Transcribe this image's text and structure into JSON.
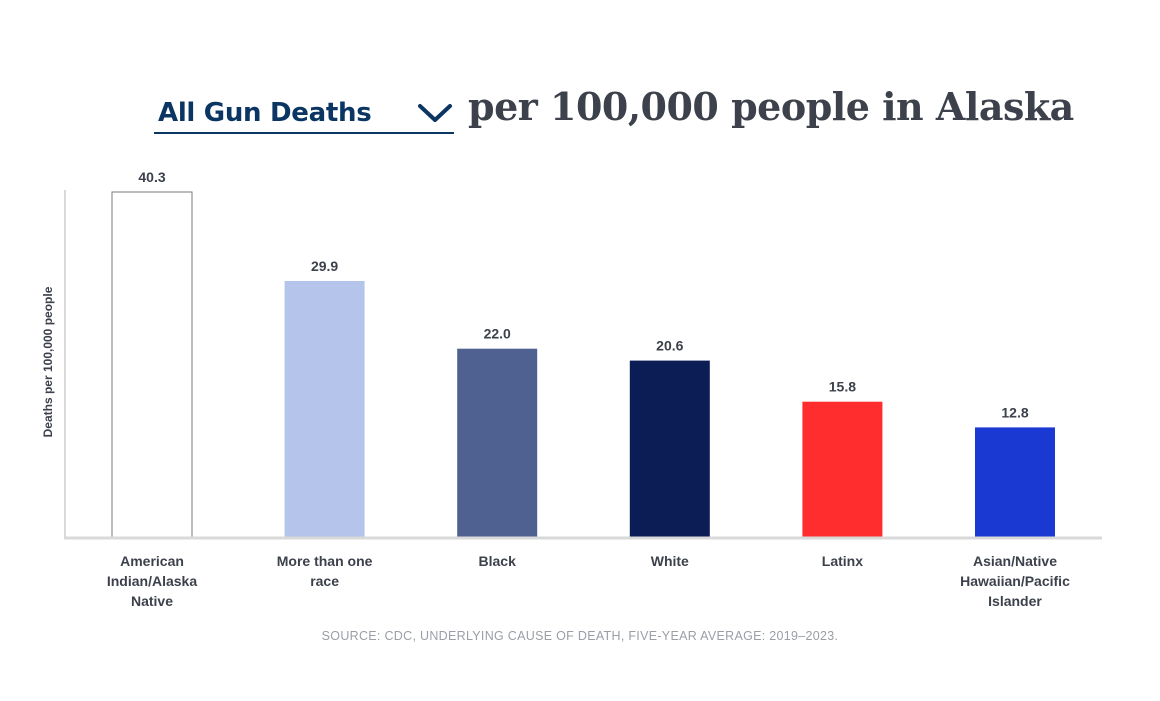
{
  "header": {
    "selector_label": "All Gun Deaths",
    "selector_icon": "chevron-down-icon",
    "title_rest": "per 100,000 people in Alaska"
  },
  "colors": {
    "selector_text": "#0b3563",
    "title_text": "#3c414b",
    "axis": "#d9d9d9"
  },
  "chart_data": {
    "type": "bar",
    "title": "All Gun Deaths per 100,000 people in Alaska",
    "ylabel": "Deaths per 100,000 people",
    "xlabel": "",
    "ylim": [
      0,
      40.3
    ],
    "grid": false,
    "categories": [
      [
        "American",
        "Indian/Alaska",
        "Native"
      ],
      [
        "More than one",
        "race"
      ],
      [
        "Black"
      ],
      [
        "White"
      ],
      [
        "Latinx"
      ],
      [
        "Asian/Native",
        "Hawaiian/Pacific",
        "Islander"
      ]
    ],
    "values": [
      40.3,
      29.9,
      22.0,
      20.6,
      15.8,
      12.8
    ],
    "value_labels": [
      "40.3",
      "29.9",
      "22.0",
      "20.6",
      "15.8",
      "12.8"
    ],
    "bar_colors": [
      "#ffffff",
      "#b5c4ea",
      "#4f6191",
      "#0c1c55",
      "#ff2d2d",
      "#1a39d2"
    ],
    "bar_strokes": [
      "#7a7a7a",
      "none",
      "none",
      "none",
      "none",
      "none"
    ]
  },
  "source": "SOURCE: CDC, UNDERLYING CAUSE OF DEATH, FIVE-YEAR AVERAGE: 2019–2023."
}
